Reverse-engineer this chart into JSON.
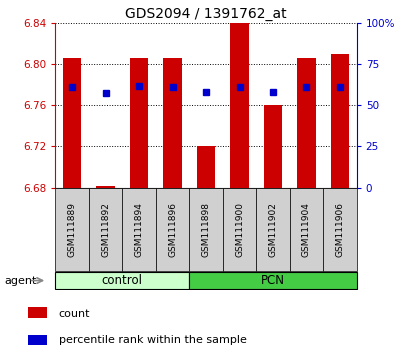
{
  "title": "GDS2094 / 1391762_at",
  "samples": [
    "GSM111889",
    "GSM111892",
    "GSM111894",
    "GSM111896",
    "GSM111898",
    "GSM111900",
    "GSM111902",
    "GSM111904",
    "GSM111906"
  ],
  "bar_tops": [
    6.806,
    6.682,
    6.806,
    6.806,
    6.72,
    6.84,
    6.76,
    6.806,
    6.81
  ],
  "bar_bottom": 6.68,
  "percentile_values": [
    6.778,
    6.772,
    6.779,
    6.778,
    6.773,
    6.778,
    6.773,
    6.778,
    6.778
  ],
  "ylim_left": [
    6.68,
    6.84
  ],
  "ylim_right": [
    0,
    100
  ],
  "yticks_left": [
    6.68,
    6.72,
    6.76,
    6.8,
    6.84
  ],
  "yticks_right": [
    0,
    25,
    50,
    75,
    100
  ],
  "ytick_labels_right": [
    "0",
    "25",
    "50",
    "75",
    "100%"
  ],
  "bar_color": "#cc0000",
  "dot_color": "#0000cc",
  "bar_width": 0.55,
  "control_color_light": "#ccffcc",
  "control_color_dark": "#44cc44",
  "agent_label": "agent",
  "legend_count_label": "count",
  "legend_pct_label": "percentile rank within the sample",
  "tick_label_color_left": "#cc0000",
  "tick_label_color_right": "#0000cc",
  "n_control": 4,
  "n_pcn": 5
}
